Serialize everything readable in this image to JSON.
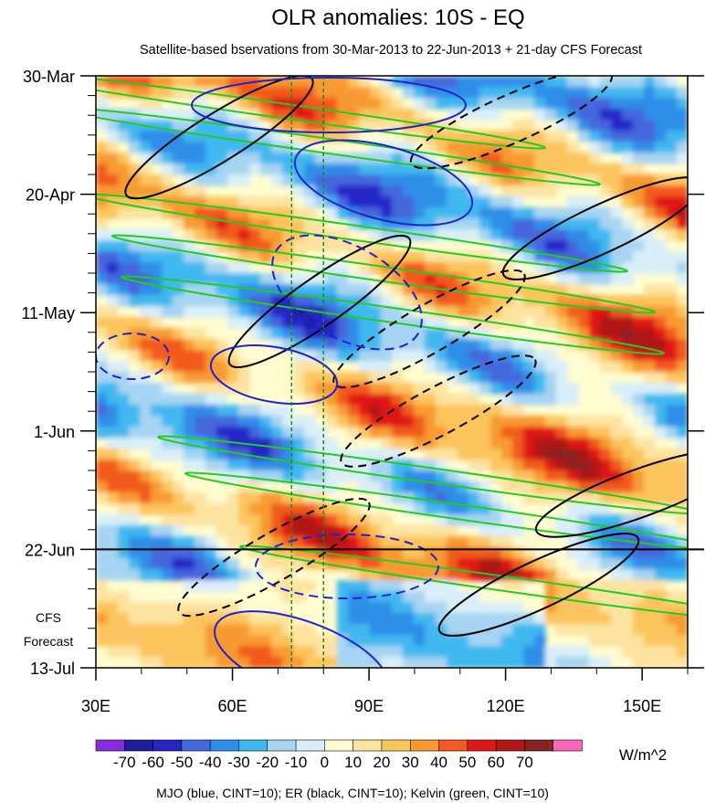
{
  "chart_data": {
    "type": "heatmap",
    "title": "OLR anomalies: 10S - EQ",
    "subtitle": "Satellite-based bservations from 30-Mar-2013 to 22-Jun-2013 + 21-day CFS Forecast",
    "x_ticks": [
      "30E",
      "60E",
      "90E",
      "120E",
      "150E"
    ],
    "x_tick_values": [
      30,
      60,
      90,
      120,
      150
    ],
    "xlim": [
      30,
      160
    ],
    "y_ticks": [
      "30-Mar",
      "20-Apr",
      "11-May",
      "1-Jun",
      "22-Jun",
      "13-Jul"
    ],
    "y_tick_values": [
      "2013-03-30",
      "2013-04-20",
      "2013-05-11",
      "2013-06-01",
      "2013-06-22",
      "2013-07-13"
    ],
    "ylim": [
      "2013-03-30",
      "2013-07-13"
    ],
    "forecast_start": "2013-06-22",
    "forecast_label": [
      "CFS",
      "Forecast"
    ],
    "reference_longitudes": [
      73,
      80
    ],
    "colorbar": {
      "unit": "W/m^2",
      "labels": [
        "-70",
        "-60",
        "-50",
        "-40",
        "-30",
        "-20",
        "-10",
        "0",
        "10",
        "20",
        "30",
        "40",
        "50",
        "60",
        "70"
      ],
      "colors": [
        "#8a2be2",
        "#1c1c9c",
        "#2525c8",
        "#4466dd",
        "#2f8ee8",
        "#3fb8f0",
        "#a6d4f2",
        "#d8eef8",
        "#fffcd0",
        "#fde3a0",
        "#fcc45c",
        "#f89a30",
        "#f25a1e",
        "#e01818",
        "#b01818",
        "#8a2020",
        "#ff66bb"
      ]
    },
    "contours_caption": "MJO (blue, CINT=10); ER (black, CINT=10); Kelvin (green, CINT=10)",
    "contour_colors": {
      "mjo": "#2222cc",
      "er": "#000000",
      "kelvin": "#22cc22"
    }
  }
}
